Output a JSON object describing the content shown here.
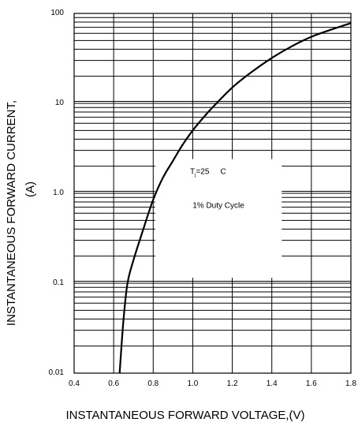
{
  "chart_data": {
    "type": "line",
    "xlabel": "INSTANTANEOUS FORWARD VOLTAGE,(V)",
    "ylabel_line1": "INSTANTANEOUS FORWARD CURRENT,",
    "ylabel_line2": "(A)",
    "xlim": [
      0.4,
      1.8
    ],
    "ylim": [
      0.01,
      100
    ],
    "yscale": "log",
    "grid": true,
    "x_ticks": [
      0.4,
      0.6,
      0.8,
      1.0,
      1.2,
      1.4,
      1.6,
      1.8
    ],
    "x_tick_labels": [
      "0.4",
      "0.6",
      "0.8",
      "1.0",
      "1.2",
      "1.4",
      "1.6",
      "1.8"
    ],
    "y_ticks": [
      0.01,
      0.1,
      1,
      10,
      100
    ],
    "y_tick_labels": [
      "0.01",
      "0.1",
      "1.0",
      "10",
      "100"
    ],
    "series": [
      {
        "x": [
          0.63,
          0.65,
          0.67,
          0.7,
          0.75,
          0.8,
          0.85,
          0.9,
          0.95,
          1.0,
          1.05,
          1.1,
          1.2,
          1.3,
          1.4,
          1.5,
          1.6,
          1.7,
          1.8
        ],
        "y": [
          0.01,
          0.04,
          0.1,
          0.18,
          0.4,
          0.85,
          1.5,
          2.3,
          3.5,
          5.0,
          6.8,
          9.0,
          15.0,
          22.5,
          32.0,
          43.0,
          55.0,
          66.0,
          78.0
        ]
      }
    ],
    "annotations": {
      "temp_main": "T",
      "temp_sub": "j",
      "temp_value": "=25",
      "temp_unit": "C",
      "duty_cycle": "1% Duty Cycle"
    }
  }
}
